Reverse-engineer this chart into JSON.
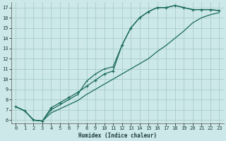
{
  "xlabel": "Humidex (Indice chaleur)",
  "bg_color": "#cce8e8",
  "grid_color": "#aacccc",
  "line_color": "#1a6b5a",
  "xlim": [
    -0.5,
    23.5
  ],
  "ylim": [
    5.7,
    17.5
  ],
  "xticks": [
    0,
    1,
    2,
    3,
    4,
    5,
    6,
    7,
    8,
    9,
    10,
    11,
    12,
    13,
    14,
    15,
    16,
    17,
    18,
    19,
    20,
    21,
    22,
    23
  ],
  "yticks": [
    6,
    7,
    8,
    9,
    10,
    11,
    12,
    13,
    14,
    15,
    16,
    17
  ],
  "line1_x": [
    0,
    1,
    2,
    3,
    4,
    5,
    6,
    7,
    8,
    9,
    10,
    11,
    12,
    13,
    14,
    15,
    16,
    17,
    18,
    19,
    20,
    21,
    22,
    23
  ],
  "line1_y": [
    7.3,
    6.9,
    6.0,
    5.9,
    6.7,
    7.1,
    7.5,
    7.9,
    8.5,
    9.0,
    9.5,
    10.0,
    10.5,
    11.0,
    11.5,
    12.0,
    12.7,
    13.3,
    14.0,
    14.7,
    15.5,
    16.0,
    16.3,
    16.5
  ],
  "line2_x": [
    0,
    1,
    2,
    3,
    4,
    5,
    6,
    7,
    8,
    9,
    10,
    11,
    12,
    13,
    14,
    15,
    16,
    17,
    18,
    19,
    20,
    21,
    22,
    23
  ],
  "line2_y": [
    7.3,
    6.9,
    6.0,
    5.9,
    7.2,
    7.7,
    8.2,
    8.7,
    9.3,
    9.9,
    10.5,
    10.8,
    13.3,
    15.0,
    16.0,
    16.6,
    17.0,
    17.0,
    17.2,
    17.0,
    16.8,
    16.8,
    16.8,
    16.7
  ],
  "line3_x": [
    0,
    1,
    2,
    3,
    4,
    5,
    6,
    7,
    8,
    9,
    10,
    11,
    12,
    13,
    14,
    15,
    16,
    17,
    18,
    19,
    20,
    21,
    22,
    23
  ],
  "line3_y": [
    7.3,
    6.9,
    6.0,
    5.9,
    7.0,
    7.5,
    8.0,
    8.5,
    9.8,
    10.5,
    11.0,
    11.2,
    13.3,
    15.0,
    16.0,
    16.6,
    17.0,
    17.0,
    17.2,
    17.0,
    16.8,
    16.8,
    16.8,
    16.7
  ],
  "marker_line": 2
}
